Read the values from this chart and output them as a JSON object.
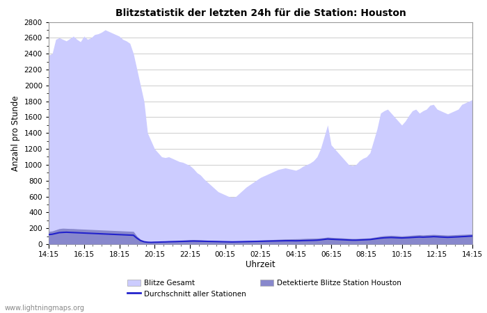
{
  "title": "Blitzstatistik der letzten 24h für die Station: Houston",
  "xlabel": "Uhrzeit",
  "ylabel": "Anzahl pro Stunde",
  "watermark": "www.lightningmaps.org",
  "x_labels": [
    "14:15",
    "16:15",
    "18:15",
    "20:15",
    "22:15",
    "00:15",
    "02:15",
    "04:15",
    "06:15",
    "08:15",
    "10:15",
    "12:15",
    "14:15"
  ],
  "ylim": [
    0,
    2800
  ],
  "yticks": [
    0,
    200,
    400,
    600,
    800,
    1000,
    1200,
    1400,
    1600,
    1800,
    2000,
    2200,
    2400,
    2600,
    2800
  ],
  "color_gesamt": "#ccccff",
  "color_detektiert": "#8888cc",
  "color_durchschnitt": "#2222cc",
  "bg_color": "#ffffff",
  "grid_color": "#cccccc",
  "n_points": 121,
  "blitze_gesamt": [
    2380,
    2400,
    2580,
    2600,
    2580,
    2560,
    2590,
    2620,
    2580,
    2550,
    2620,
    2580,
    2600,
    2640,
    2650,
    2670,
    2700,
    2680,
    2660,
    2640,
    2620,
    2580,
    2560,
    2530,
    2400,
    2200,
    2000,
    1800,
    1400,
    1300,
    1200,
    1150,
    1100,
    1090,
    1100,
    1080,
    1060,
    1040,
    1030,
    1010,
    990,
    950,
    900,
    870,
    820,
    780,
    740,
    700,
    660,
    640,
    620,
    600,
    590,
    600,
    640,
    680,
    720,
    750,
    780,
    810,
    840,
    860,
    880,
    900,
    920,
    940,
    950,
    960,
    950,
    940,
    930,
    950,
    980,
    1000,
    1020,
    1050,
    1100,
    1200,
    1350,
    1500,
    1250,
    1200,
    1150,
    1100,
    1050,
    1000,
    990,
    1000,
    1050,
    1080,
    1100,
    1150,
    1300,
    1450,
    1650,
    1680,
    1700,
    1650,
    1600,
    1550,
    1500,
    1550,
    1620,
    1680,
    1700,
    1650,
    1680,
    1700,
    1750,
    1760,
    1700,
    1680,
    1660,
    1640,
    1660,
    1680,
    1700,
    1760,
    1780,
    1800,
    1820
  ],
  "detektierte_blitze": [
    160,
    165,
    180,
    195,
    200,
    198,
    196,
    195,
    192,
    190,
    188,
    186,
    184,
    182,
    180,
    178,
    176,
    174,
    172,
    170,
    168,
    166,
    164,
    162,
    160,
    100,
    60,
    40,
    30,
    28,
    30,
    32,
    35,
    38,
    40,
    42,
    45,
    48,
    50,
    52,
    55,
    57,
    55,
    53,
    50,
    48,
    46,
    44,
    42,
    40,
    38,
    36,
    35,
    36,
    38,
    40,
    42,
    44,
    46,
    48,
    50,
    52,
    54,
    56,
    58,
    60,
    62,
    64,
    65,
    66,
    67,
    68,
    70,
    72,
    73,
    74,
    75,
    78,
    82,
    88,
    85,
    82,
    80,
    78,
    75,
    72,
    70,
    70,
    72,
    74,
    76,
    78,
    85,
    92,
    100,
    105,
    108,
    110,
    108,
    105,
    102,
    105,
    108,
    112,
    115,
    118,
    115,
    118,
    120,
    122,
    120,
    118,
    116,
    114,
    116,
    118,
    120,
    122,
    124,
    126,
    128
  ],
  "durchschnitt": [
    120,
    125,
    135,
    145,
    148,
    150,
    148,
    146,
    144,
    142,
    140,
    138,
    136,
    134,
    132,
    130,
    128,
    126,
    124,
    122,
    120,
    118,
    116,
    114,
    112,
    75,
    45,
    30,
    24,
    22,
    24,
    25,
    27,
    28,
    30,
    31,
    32,
    34,
    35,
    36,
    38,
    39,
    38,
    37,
    36,
    35,
    34,
    33,
    32,
    31,
    30,
    29,
    28,
    29,
    30,
    31,
    32,
    33,
    34,
    35,
    36,
    37,
    38,
    39,
    40,
    41,
    42,
    43,
    43,
    43,
    42,
    43,
    45,
    46,
    47,
    48,
    50,
    54,
    60,
    65,
    62,
    60,
    58,
    56,
    54,
    52,
    50,
    50,
    52,
    54,
    56,
    58,
    64,
    70,
    76,
    80,
    82,
    84,
    82,
    80,
    78,
    80,
    82,
    85,
    88,
    90,
    88,
    90,
    92,
    95,
    93,
    90,
    88,
    86,
    88,
    90,
    92,
    95,
    97,
    100,
    102
  ]
}
